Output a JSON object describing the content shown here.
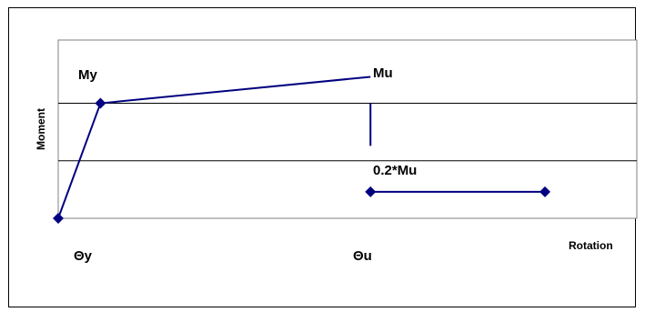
{
  "chart_data": {
    "type": "line",
    "title": "",
    "xlabel": "Rotation",
    "ylabel": "Moment",
    "grid": true,
    "series": [
      {
        "points": [
          {
            "x": 0,
            "y": 0
          },
          {
            "x": 0.46,
            "y": 1.0
          },
          {
            "x": 3.4,
            "y": 1.23
          }
        ]
      },
      {
        "points": [
          {
            "x": 3.4,
            "y": 1.0
          },
          {
            "x": 3.4,
            "y": 0.63
          }
        ]
      },
      {
        "points": [
          {
            "x": 3.4,
            "y": 0.23
          },
          {
            "x": 5.3,
            "y": 0.23
          }
        ]
      }
    ],
    "markers": [
      {
        "x": 0,
        "y": 0
      },
      {
        "x": 0.46,
        "y": 1.0
      },
      {
        "x": 3.4,
        "y": 0.23
      },
      {
        "x": 5.3,
        "y": 0.23
      }
    ],
    "annotations": {
      "my": "My",
      "mu": "Mu",
      "residual": "0.2*Mu",
      "theta_y": "Θy",
      "theta_u": "Θu"
    },
    "xlim": [
      0,
      6.3
    ],
    "ylim": [
      0,
      1.55
    ],
    "colors": {
      "series": "#000080",
      "grid": "#000000",
      "plot_border": "#808080"
    }
  }
}
